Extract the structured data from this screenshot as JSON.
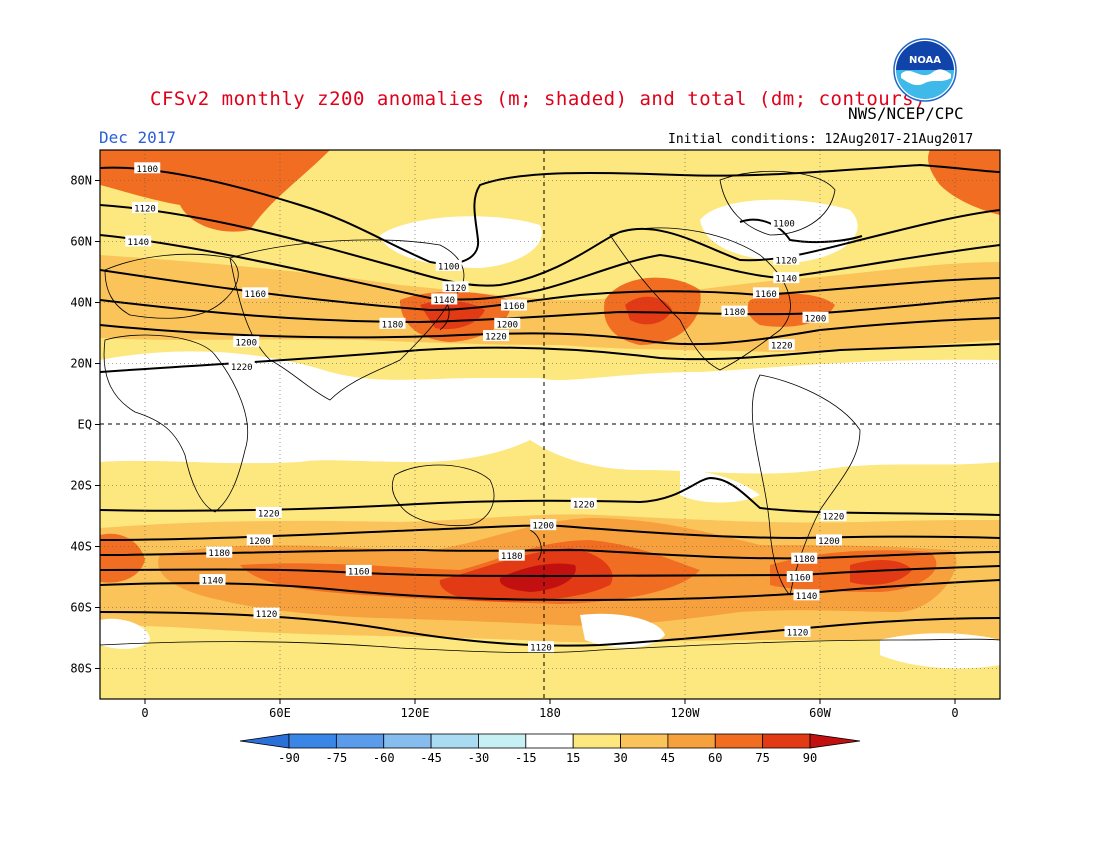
{
  "header": {
    "title": "CFSv2 monthly z200 anomalies (m; shaded) and total (dm; contours)",
    "agency": "NWS/NCEP/CPC",
    "month": "Dec 2017",
    "initial_conditions": "Initial conditions: 12Aug2017-21Aug2017"
  },
  "logo": {
    "icon": "noaa-logo-icon",
    "text": "NOAA"
  },
  "map": {
    "lat_labels": [
      {
        "value": 80,
        "label": "80N"
      },
      {
        "value": 60,
        "label": "60N"
      },
      {
        "value": 40,
        "label": "40N"
      },
      {
        "value": 20,
        "label": "20N"
      },
      {
        "value": 0,
        "label": "EQ"
      },
      {
        "value": -20,
        "label": "20S"
      },
      {
        "value": -40,
        "label": "40S"
      },
      {
        "value": -60,
        "label": "60S"
      },
      {
        "value": -80,
        "label": "80S"
      }
    ],
    "lon_labels": [
      {
        "value": 0,
        "label": "0"
      },
      {
        "value": 60,
        "label": "60E"
      },
      {
        "value": 120,
        "label": "120E"
      },
      {
        "value": 180,
        "label": "180"
      },
      {
        "value": 240,
        "label": "120W"
      },
      {
        "value": 300,
        "label": "60W"
      },
      {
        "value": 360,
        "label": "0"
      }
    ],
    "contour_labels": [
      {
        "text": "1100",
        "lon": 1,
        "lat": 84
      },
      {
        "text": "1120",
        "lon": 0,
        "lat": 71
      },
      {
        "text": "1140",
        "lon": -3,
        "lat": 60
      },
      {
        "text": "1160",
        "lon": 49,
        "lat": 43
      },
      {
        "text": "1200",
        "lon": 45,
        "lat": 27
      },
      {
        "text": "1220",
        "lon": 43,
        "lat": 19
      },
      {
        "text": "1100",
        "lon": 135,
        "lat": 52
      },
      {
        "text": "1120",
        "lon": 138,
        "lat": 45
      },
      {
        "text": "1140",
        "lon": 133,
        "lat": 41
      },
      {
        "text": "1160",
        "lon": 164,
        "lat": 39
      },
      {
        "text": "1180",
        "lon": 110,
        "lat": 33
      },
      {
        "text": "1200",
        "lon": 161,
        "lat": 33
      },
      {
        "text": "1220",
        "lon": 156,
        "lat": 29
      },
      {
        "text": "1100",
        "lon": 284,
        "lat": 66
      },
      {
        "text": "1120",
        "lon": 285,
        "lat": 54
      },
      {
        "text": "1140",
        "lon": 285,
        "lat": 48
      },
      {
        "text": "1160",
        "lon": 276,
        "lat": 43
      },
      {
        "text": "1180",
        "lon": 262,
        "lat": 37
      },
      {
        "text": "1200",
        "lon": 298,
        "lat": 35
      },
      {
        "text": "1220",
        "lon": 283,
        "lat": 26
      },
      {
        "text": "1220",
        "lon": 195,
        "lat": -26
      },
      {
        "text": "1220",
        "lon": 55,
        "lat": -29
      },
      {
        "text": "1220",
        "lon": 306,
        "lat": -30
      },
      {
        "text": "1200",
        "lon": 177,
        "lat": -33
      },
      {
        "text": "1200",
        "lon": 51,
        "lat": -38
      },
      {
        "text": "1200",
        "lon": 304,
        "lat": -38
      },
      {
        "text": "1180",
        "lon": 33,
        "lat": -42
      },
      {
        "text": "1180",
        "lon": 163,
        "lat": -43
      },
      {
        "text": "1180",
        "lon": 293,
        "lat": -44
      },
      {
        "text": "1160",
        "lon": 95,
        "lat": -48
      },
      {
        "text": "1160",
        "lon": 291,
        "lat": -50
      },
      {
        "text": "1140",
        "lon": 30,
        "lat": -51
      },
      {
        "text": "1140",
        "lon": 294,
        "lat": -56
      },
      {
        "text": "1120",
        "lon": 54,
        "lat": -62
      },
      {
        "text": "1120",
        "lon": 290,
        "lat": -68
      },
      {
        "text": "1120",
        "lon": 176,
        "lat": -73
      }
    ]
  },
  "colorbar": {
    "labels": [
      "-90",
      "-75",
      "-60",
      "-45",
      "-30",
      "-15",
      "15",
      "30",
      "45",
      "60",
      "75",
      "90"
    ],
    "colors": [
      "#2b6fd9",
      "#3a86e6",
      "#5a9ceb",
      "#87bdee",
      "#a9dcf3",
      "#c7f0f4",
      "#ffffff",
      "#fde77f",
      "#fbc45a",
      "#f6a13d",
      "#f06d22",
      "#e23a14",
      "#c21010"
    ]
  }
}
